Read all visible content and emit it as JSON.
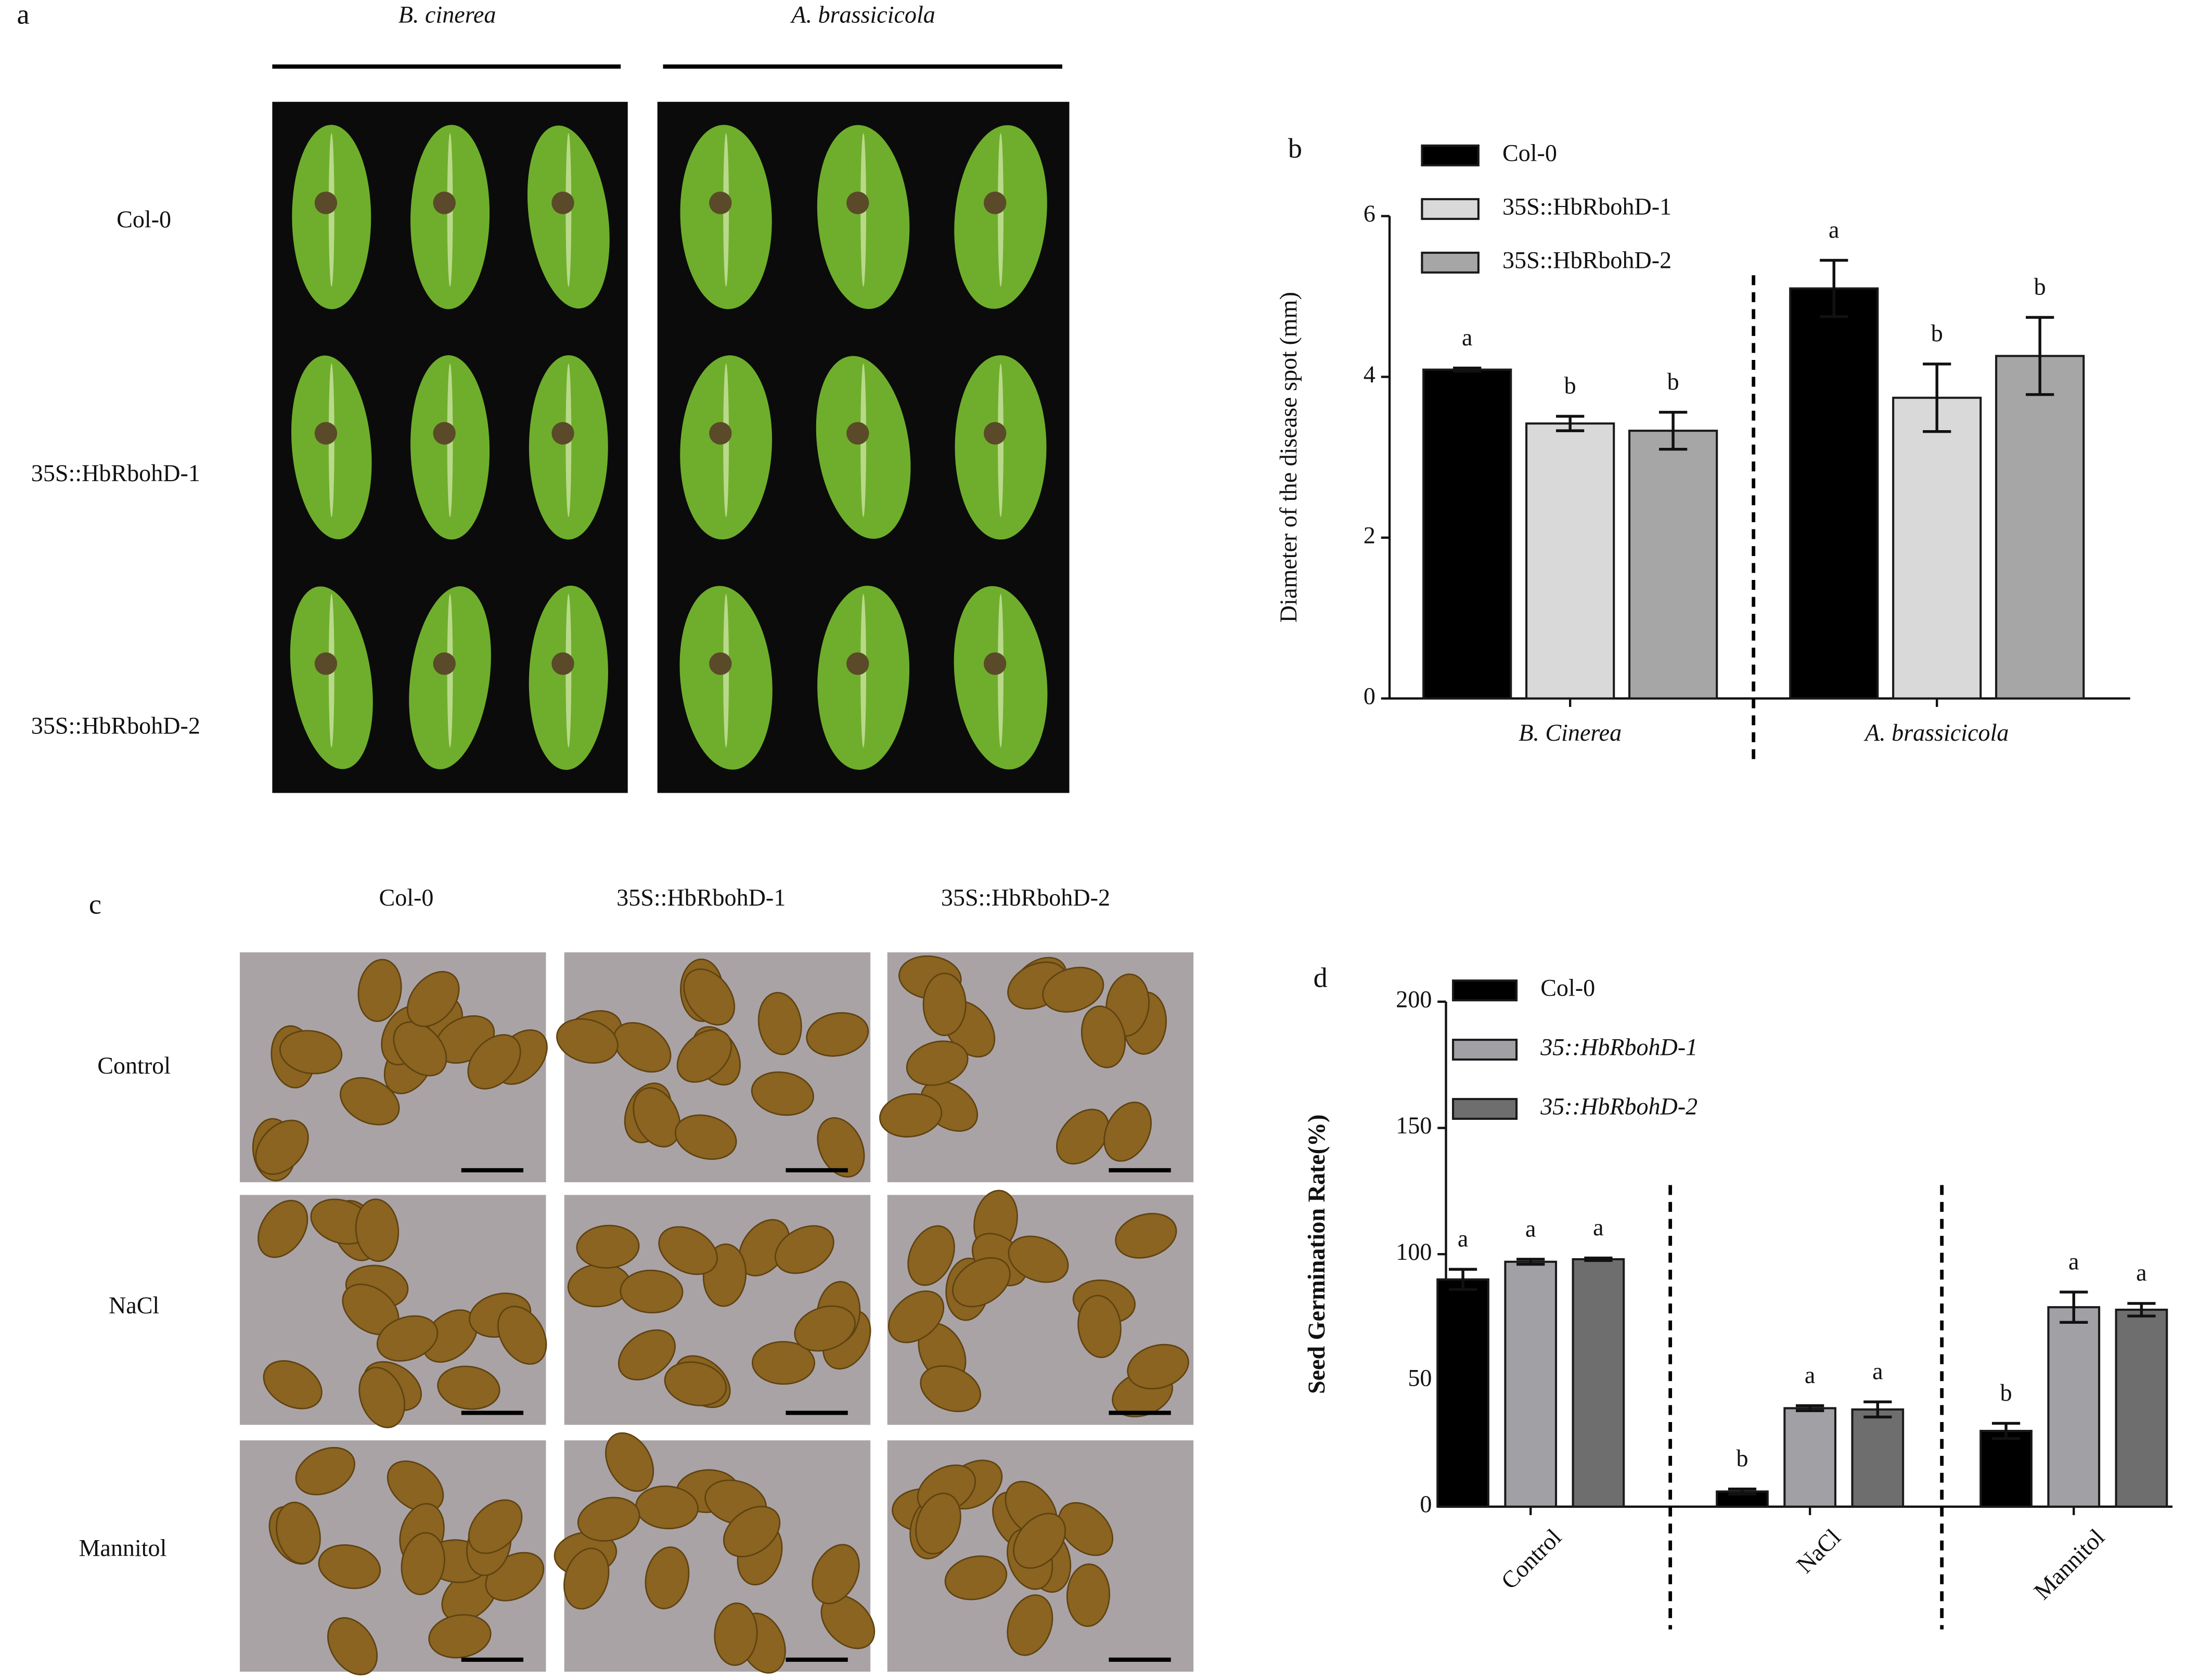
{
  "figure": {
    "panel_a": {
      "label": "a",
      "columns": [
        "B. cinerea",
        "A. brassicicola"
      ],
      "rows": [
        "Col-0",
        "35S::HbRbohD-1",
        "35S::HbRbohD-2"
      ]
    },
    "panel_b": {
      "label": "b"
    },
    "panel_c": {
      "label": "c",
      "columns": [
        "Col-0",
        "35S::HbRbohD-1",
        "35S::HbRbohD-2"
      ],
      "rows": [
        "Control",
        "NaCl",
        "Mannitol"
      ]
    },
    "panel_d": {
      "label": "d"
    }
  },
  "chart_data": [
    {
      "type": "bar",
      "categories": [
        "B. Cinerea",
        "A. brassicicola"
      ],
      "ylabel": "Diameter of the disease spot (mm)",
      "ylim": [
        0,
        6
      ],
      "yticks": [
        0,
        2,
        4,
        6
      ],
      "series": [
        {
          "name": "Col-0",
          "color": "#000000",
          "values": [
            4.09,
            5.1
          ],
          "errors": [
            0.02,
            0.35
          ],
          "letters": [
            "a",
            "a"
          ]
        },
        {
          "name": "35S::HbRbohD-1",
          "color": "#d9d9d9",
          "values": [
            3.42,
            3.74
          ],
          "errors": [
            0.09,
            0.42
          ],
          "letters": [
            "b",
            "b"
          ]
        },
        {
          "name": "35S::HbRbohD-2",
          "color": "#a6a6a6",
          "values": [
            3.33,
            4.26
          ],
          "errors": [
            0.23,
            0.48
          ],
          "letters": [
            "b",
            "b"
          ]
        }
      ]
    },
    {
      "type": "bar",
      "categories": [
        "Control",
        "NaCl",
        "Mannitol"
      ],
      "ylabel": "Seed Germination Rate(%)",
      "ylim": [
        0,
        200
      ],
      "yticks": [
        0,
        50,
        100,
        150,
        200
      ],
      "series": [
        {
          "name": "Col-0",
          "color": "#000000",
          "values": [
            90,
            6,
            30
          ],
          "errors": [
            4,
            1,
            3
          ],
          "letters": [
            "a",
            "b",
            "b"
          ]
        },
        {
          "name": "35::HbRbohD-1",
          "color": "#a0a0a5",
          "values": [
            97,
            39,
            79
          ],
          "errors": [
            1,
            1,
            6
          ],
          "letters": [
            "a",
            "a",
            "a"
          ]
        },
        {
          "name": "35::HbRbohD-2",
          "color": "#6e6e6e",
          "values": [
            98,
            38.5,
            78
          ],
          "errors": [
            0.5,
            3,
            2.5
          ],
          "letters": [
            "a",
            "a",
            "a"
          ]
        }
      ]
    }
  ]
}
